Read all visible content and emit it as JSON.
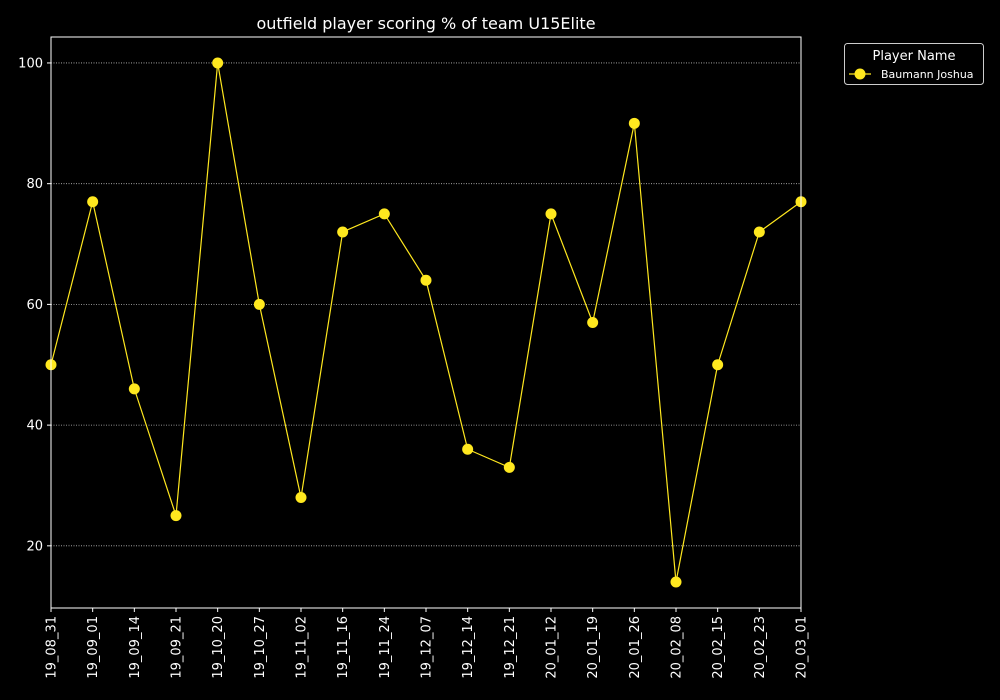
{
  "chart_data": {
    "type": "line",
    "title": "outfield player scoring % of team U15Elite",
    "xlabel": "",
    "ylabel": "",
    "categories": [
      "19_08_31",
      "19_09_01",
      "19_09_14",
      "19_09_21",
      "19_10_20",
      "19_10_27",
      "19_11_02",
      "19_11_16",
      "19_11_24",
      "19_12_07",
      "19_12_14",
      "19_12_21",
      "20_01_12",
      "20_01_19",
      "20_01_26",
      "20_02_08",
      "20_02_15",
      "20_02_23",
      "20_03_01"
    ],
    "series": [
      {
        "name": "Baumann Joshua",
        "values": [
          50,
          77,
          46,
          25,
          100,
          60,
          28,
          72,
          75,
          64,
          36,
          33,
          75,
          57,
          90,
          14,
          50,
          72,
          77
        ]
      }
    ],
    "ylim": [
      9.7,
      104.3
    ],
    "yticks": [
      20,
      40,
      60,
      80,
      100
    ],
    "grid": true,
    "legend": {
      "title": "Player Name",
      "placement": "upper-right-outside"
    },
    "colors": {
      "background": "#000000",
      "axes": "#ffffff",
      "series": "#ffe81f",
      "grid": "#bbbbbb"
    }
  }
}
